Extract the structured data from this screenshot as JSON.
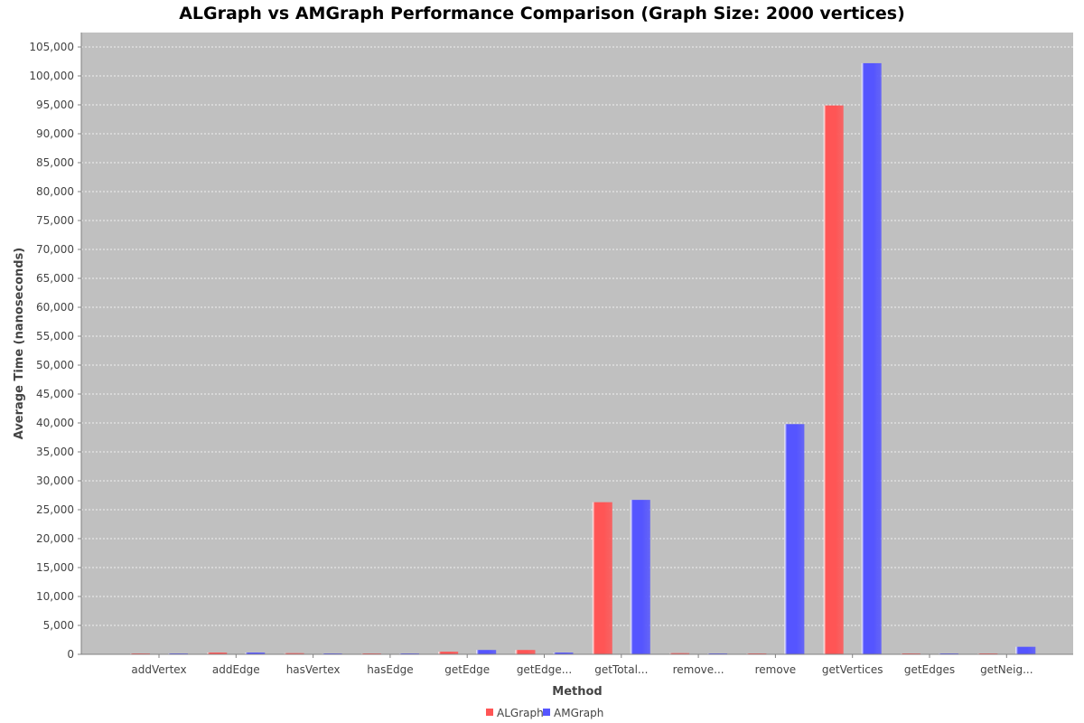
{
  "chart_data": {
    "type": "bar",
    "title": "ALGraph vs AMGraph Performance Comparison (Graph Size: 2000 vertices)",
    "xlabel": "Method",
    "ylabel": "Average Time (nanoseconds)",
    "categories": [
      "addVertex",
      "addEdge",
      "hasVertex",
      "hasEdge",
      "getEdge",
      "getEdge...",
      "getTotal...",
      "remove...",
      "remove",
      "getVertices",
      "getEdges",
      "getNeig..."
    ],
    "series": [
      {
        "name": "ALGraph",
        "color": "#ff5555",
        "values": [
          50,
          300,
          200,
          100,
          450,
          750,
          26300,
          200,
          150,
          94900,
          30,
          100
        ]
      },
      {
        "name": "AMGraph",
        "color": "#5555ff",
        "values": [
          50,
          300,
          150,
          100,
          750,
          300,
          26700,
          150,
          39800,
          102200,
          30,
          1300
        ]
      }
    ],
    "ylim": [
      0,
      107500
    ],
    "y_ticks": [
      "0",
      "5,000",
      "10,000",
      "15,000",
      "20,000",
      "25,000",
      "30,000",
      "35,000",
      "40,000",
      "45,000",
      "50,000",
      "55,000",
      "60,000",
      "65,000",
      "70,000",
      "75,000",
      "80,000",
      "85,000",
      "90,000",
      "95,000",
      "100,000",
      "105,000"
    ],
    "y_tick_step": 5000,
    "grid": true,
    "legend_position": "bottom-center",
    "plot_background": "#c0c0c0"
  }
}
